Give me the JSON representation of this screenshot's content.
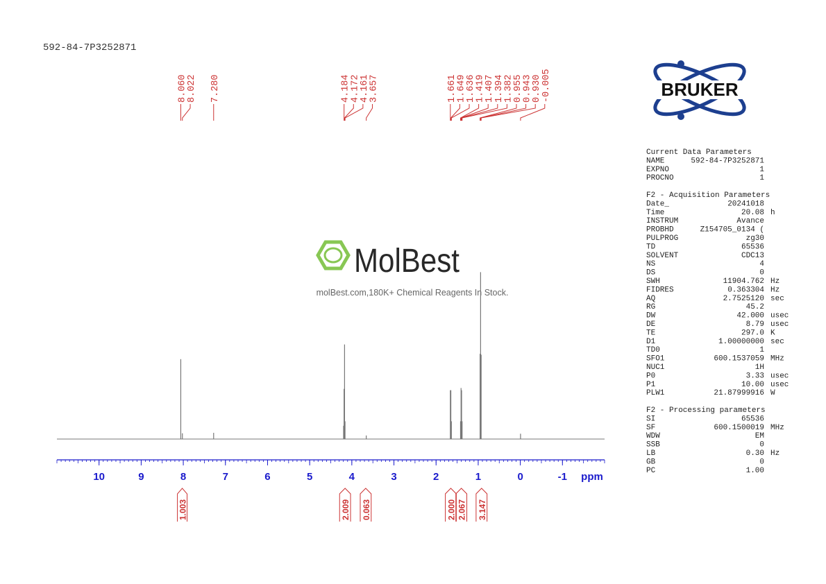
{
  "sample_id": "592-84-7P3252871",
  "bruker_logo": "BRUKER",
  "watermark": {
    "name": "MolBest",
    "tagline": "molBest.com,180K+ Chemical Reagents In Stock."
  },
  "chart_data": {
    "type": "spectrum",
    "x_label": "ppm",
    "xlim": [
      11,
      -2
    ],
    "xticks": [
      10,
      9,
      8,
      7,
      6,
      5,
      4,
      3,
      2,
      1,
      0,
      -1
    ],
    "ylim": [
      0,
      400
    ],
    "color": "#777777",
    "label_color": "#cc3333",
    "axis_color": "#1a1acc",
    "peaks": {
      "x": [
        8.06,
        8.022,
        7.28,
        4.195,
        4.184,
        4.172,
        4.161,
        3.657,
        1.661,
        1.649,
        1.636,
        1.419,
        1.407,
        1.394,
        1.382,
        0.955,
        0.943,
        0.93,
        -0.005
      ],
      "y": [
        180,
        13,
        14,
        30,
        113,
        213,
        40,
        8,
        110,
        110,
        40,
        40,
        115,
        110,
        40,
        192,
        376,
        190,
        12
      ]
    },
    "peak_labels": [
      {
        "value": 8.06,
        "label": "8.060"
      },
      {
        "value": 8.022,
        "label": "8.022"
      },
      {
        "value": 7.28,
        "label": "7.280"
      },
      {
        "value": 4.184,
        "label": "4.184"
      },
      {
        "value": 4.172,
        "label": "4.172"
      },
      {
        "value": 4.161,
        "label": "4.161"
      },
      {
        "value": 3.657,
        "label": "3.657"
      },
      {
        "value": 1.661,
        "label": "1.661"
      },
      {
        "value": 1.649,
        "label": "1.649"
      },
      {
        "value": 1.636,
        "label": "1.636"
      },
      {
        "value": 1.419,
        "label": "1.419"
      },
      {
        "value": 1.407,
        "label": "1.407"
      },
      {
        "value": 1.394,
        "label": "1.394"
      },
      {
        "value": 1.382,
        "label": "1.382"
      },
      {
        "value": 0.955,
        "label": "0.955"
      },
      {
        "value": 0.943,
        "label": "0.943"
      },
      {
        "value": 0.93,
        "label": "0.930"
      },
      {
        "value": -0.005,
        "label": "-0.005"
      }
    ],
    "integrals": [
      {
        "range": [
          8.14,
          7.91
        ],
        "value": 1.003
      },
      {
        "range": [
          4.29,
          4.03
        ],
        "value": 2.009
      },
      {
        "range": [
          3.8,
          3.54
        ],
        "value": 0.063
      },
      {
        "range": [
          1.78,
          1.52
        ],
        "value": {
          "value": 2,
          "label": "2.000"
        }
      },
      {
        "range": [
          1.53,
          1.27
        ],
        "value": 2.067
      },
      {
        "range": [
          1.05,
          0.79
        ],
        "value": 3.147
      }
    ]
  },
  "parameters": [
    {
      "title": "Current Data Parameters",
      "rows": [
        [
          "NAME",
          "592-84-7P3252871"
        ],
        [
          "EXPNO",
          "1"
        ],
        [
          "PROCNO",
          "1"
        ]
      ]
    },
    {
      "title": "F2 - Acquisition Parameters",
      "rows": [
        [
          "Date_",
          "20241018"
        ],
        [
          "Time",
          "20.08",
          "h"
        ],
        [
          "INSTRUM",
          "Avance"
        ],
        [
          "PROBHD",
          "Z154705_0134 ("
        ],
        [
          "PULPROG",
          "zg30"
        ],
        [
          "TD",
          "65536"
        ],
        [
          "SOLVENT",
          "CDC13"
        ],
        [
          "NS",
          "4"
        ],
        [
          "DS",
          "0"
        ],
        [
          "SWH",
          "11904.762",
          "Hz"
        ],
        [
          "FIDRES",
          "0.363304",
          "Hz"
        ],
        [
          "AQ",
          "2.7525120",
          "sec"
        ],
        [
          "RG",
          "45.2"
        ],
        [
          "DW",
          "42.000",
          "usec"
        ],
        [
          "DE",
          "8.79",
          "usec"
        ],
        [
          "TE",
          "297.0",
          "K"
        ],
        [
          "D1",
          "1.00000000",
          "sec"
        ],
        [
          "TD0",
          "1"
        ],
        [
          "SFO1",
          "600.1537059",
          "MHz"
        ],
        [
          "NUC1",
          "1H"
        ],
        [
          "P0",
          "3.33",
          "usec"
        ],
        [
          "P1",
          "10.00",
          "usec"
        ],
        [
          "PLW1",
          "21.87999916",
          "W"
        ]
      ]
    },
    {
      "title": "F2 - Processing parameters",
      "rows": [
        [
          "SI",
          "65536"
        ],
        [
          "SF",
          "600.1500019",
          "MHz"
        ],
        [
          "WDW",
          "EM"
        ],
        [
          "SSB",
          "0"
        ],
        [
          "LB",
          "0.30",
          "Hz"
        ],
        [
          "GB",
          "0"
        ],
        [
          "PC",
          "1.00"
        ]
      ]
    }
  ]
}
